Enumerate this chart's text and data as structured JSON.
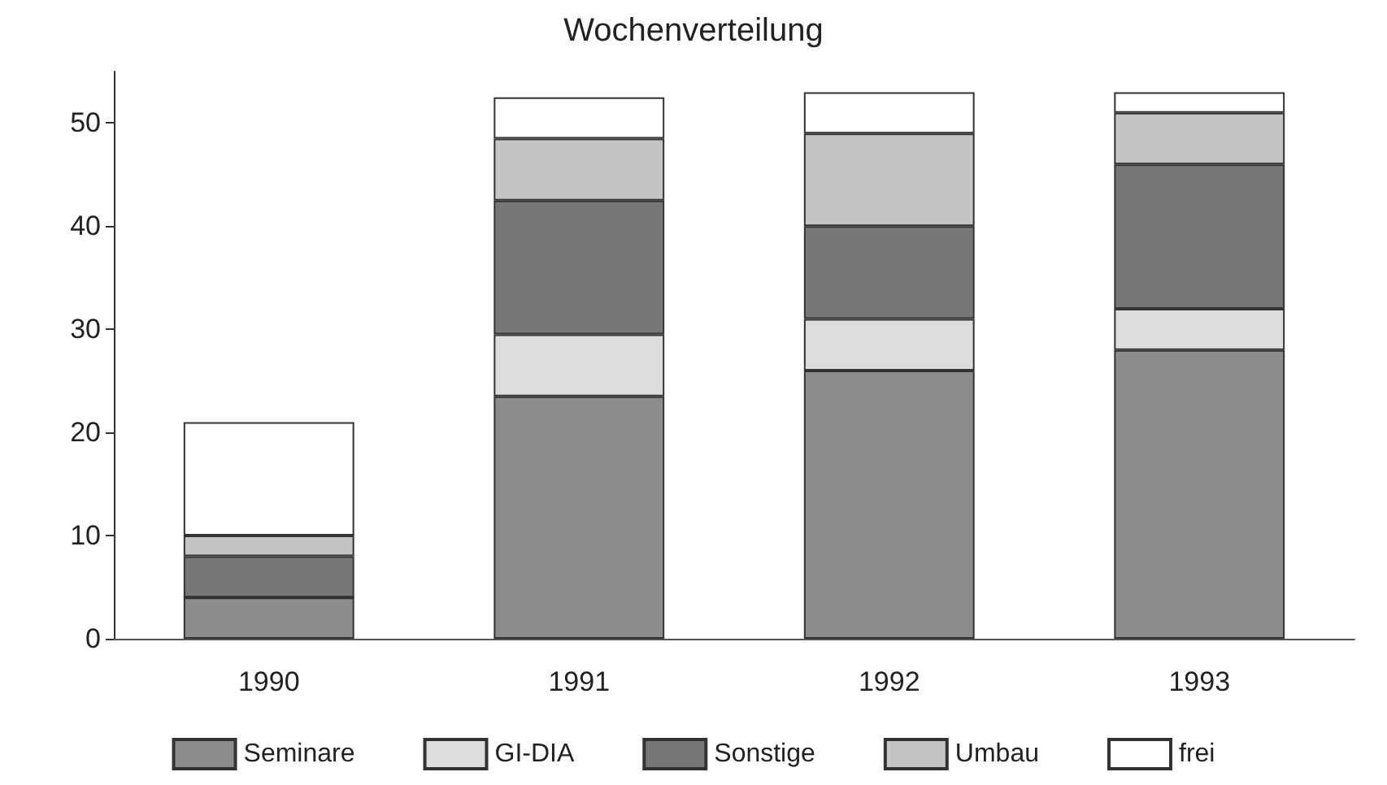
{
  "chart_data": {
    "type": "bar",
    "title": "Wochenverteilung",
    "stacked": true,
    "categories": [
      "1990",
      "1991",
      "1992",
      "1993"
    ],
    "series": [
      {
        "name": "Seminare",
        "color": "#8c8c8c",
        "values": [
          4,
          23.5,
          26,
          28
        ]
      },
      {
        "name": "GI-DIA",
        "color": "#dcdcdc",
        "values": [
          0,
          6,
          5,
          4
        ]
      },
      {
        "name": "Sonstige",
        "color": "#777777",
        "values": [
          4,
          13,
          9,
          14
        ]
      },
      {
        "name": "Umbau",
        "color": "#c4c4c4",
        "values": [
          2,
          6,
          9,
          5
        ]
      },
      {
        "name": "frei",
        "color": "#ffffff",
        "values": [
          11,
          4,
          4,
          2
        ]
      }
    ],
    "ylim": [
      0,
      55
    ],
    "yticks": [
      0,
      10,
      20,
      30,
      40,
      50
    ],
    "grid": false,
    "legend": "bottom"
  }
}
